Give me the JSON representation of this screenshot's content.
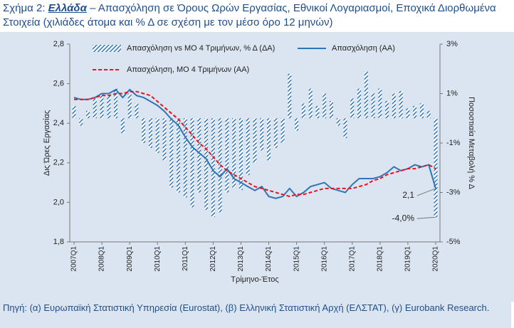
{
  "header": {
    "title_prefix": "Σχήμα 2: ",
    "title_country": "Ελλάδα",
    "title_rest": " – Απασχόληση σε Όρους Ωρών Εργασίας, Εθνικοί Λογαριασμοί, Εποχικά Διορθωμένα Στοιχεία (χιλιάδες άτομα και % Δ σε σχέση με τον μέσο όρο 12 μηνών)"
  },
  "chart_data": {
    "type": "line",
    "xlabel": "Τρίμηνο-Έτος",
    "ylabel": "Δις Ώρες Εργασίας",
    "y2label": "Ποσοστιαία Μεταβολή % Δ",
    "categories": [
      "2007Q1",
      null,
      null,
      null,
      "2008Q1",
      null,
      null,
      null,
      "2009Q1",
      null,
      null,
      null,
      "2010Q1",
      null,
      null,
      null,
      "2011Q1",
      null,
      null,
      null,
      "2012Q1",
      null,
      null,
      null,
      "2013Q1",
      null,
      null,
      null,
      "2014Q1",
      null,
      null,
      null,
      "2015Q1",
      null,
      null,
      null,
      "2016Q1",
      null,
      null,
      null,
      "2017Q1",
      null,
      null,
      null,
      "2018Q1",
      null,
      null,
      null,
      "2019Q1",
      null,
      null,
      null,
      "2020Q1"
    ],
    "ylim": [
      1.8,
      2.8
    ],
    "yticks": [
      {
        "value": 1.8,
        "label": "1,8"
      },
      {
        "value": 2.0,
        "label": "2,0"
      },
      {
        "value": 2.2,
        "label": "2,2"
      },
      {
        "value": 2.4,
        "label": "2,4"
      },
      {
        "value": 2.6,
        "label": "2,6"
      },
      {
        "value": 2.8,
        "label": "2,8"
      }
    ],
    "y2lim": [
      -5,
      3
    ],
    "y2ticks": [
      {
        "value": -5,
        "label": "-5%"
      },
      {
        "value": -3,
        "label": "-3%"
      },
      {
        "value": -1,
        "label": "-1%"
      },
      {
        "value": 1,
        "label": "1%"
      },
      {
        "value": 3,
        "label": "3%"
      }
    ],
    "series": [
      {
        "name": "Απασχόληση vs ΜΟ 4 Τριμήνων, % Δ (ΔΑ)",
        "type": "bar",
        "axis": "y2",
        "color": "#2e75b6",
        "hatch": true,
        "values": [
          0.5,
          -0.3,
          0.3,
          0.8,
          1.0,
          0.9,
          1.2,
          -0.6,
          1.0,
          0.6,
          -1.0,
          -1.2,
          -1.4,
          -1.7,
          -2.8,
          -3.0,
          -3.2,
          -3.6,
          -3.0,
          -3.7,
          -4.0,
          -3.8,
          -3.0,
          -2.8,
          -2.9,
          -2.3,
          -1.8,
          -1.3,
          -1.7,
          -1.2,
          -1.0,
          1.8,
          -0.5,
          0.6,
          1.2,
          0.5,
          1.0,
          0.7,
          -0.3,
          -0.8,
          0.8,
          1.2,
          1.9,
          1.0,
          1.2,
          0.7,
          1.0,
          1.1,
          0.4,
          0.5,
          0.6,
          0.3,
          -4.0
        ],
        "value_labels": [
          null,
          null,
          null,
          null,
          null,
          null,
          null,
          null,
          null,
          null,
          null,
          null,
          null,
          null,
          null,
          null,
          null,
          null,
          null,
          null,
          null,
          null,
          null,
          null,
          null,
          null,
          null,
          null,
          null,
          null,
          null,
          null,
          null,
          null,
          null,
          null,
          null,
          null,
          null,
          null,
          null,
          null,
          null,
          null,
          null,
          null,
          null,
          null,
          null,
          null,
          null,
          null,
          "-4,0%"
        ]
      },
      {
        "name": "Απασχόληση (ΑΑ)",
        "type": "line",
        "color": "#2e75b6",
        "dash": false,
        "values": [
          2.53,
          2.52,
          2.52,
          2.53,
          2.55,
          2.55,
          2.57,
          2.53,
          2.57,
          2.54,
          2.53,
          2.51,
          2.49,
          2.46,
          2.42,
          2.39,
          2.33,
          2.28,
          2.25,
          2.22,
          2.16,
          2.13,
          2.17,
          2.12,
          2.1,
          2.08,
          2.06,
          2.08,
          2.03,
          2.02,
          2.03,
          2.07,
          2.03,
          2.05,
          2.08,
          2.09,
          2.1,
          2.07,
          2.06,
          2.05,
          2.09,
          2.12,
          2.12,
          2.12,
          2.13,
          2.15,
          2.18,
          2.16,
          2.17,
          2.19,
          2.18,
          2.19,
          2.07
        ],
        "value_labels": [
          null,
          null,
          null,
          null,
          null,
          null,
          null,
          null,
          null,
          null,
          null,
          null,
          null,
          null,
          null,
          null,
          null,
          null,
          null,
          null,
          null,
          null,
          null,
          null,
          null,
          null,
          null,
          null,
          null,
          null,
          null,
          null,
          null,
          null,
          null,
          null,
          null,
          null,
          null,
          null,
          null,
          null,
          null,
          null,
          null,
          null,
          null,
          null,
          null,
          null,
          null,
          null,
          "2,1"
        ]
      },
      {
        "name": "Απασχόληση, ΜΟ 4 Τριμήνων (ΑΑ)",
        "type": "line",
        "color": "#e8141c",
        "dash": true,
        "values": [
          2.52,
          2.52,
          2.52,
          2.53,
          2.54,
          2.54,
          2.55,
          2.55,
          2.56,
          2.56,
          2.55,
          2.54,
          2.51,
          2.48,
          2.45,
          2.42,
          2.38,
          2.34,
          2.3,
          2.27,
          2.23,
          2.19,
          2.16,
          2.14,
          2.12,
          2.1,
          2.08,
          2.07,
          2.06,
          2.05,
          2.04,
          2.03,
          2.04,
          2.04,
          2.05,
          2.06,
          2.07,
          2.07,
          2.07,
          2.07,
          2.07,
          2.08,
          2.09,
          2.11,
          2.12,
          2.14,
          2.15,
          2.16,
          2.17,
          2.17,
          2.18,
          2.19,
          2.17
        ]
      }
    ]
  },
  "footer": {
    "source": "Πηγή: (α) Ευρωπαϊκή Στατιστική Υπηρεσία (Eurostat), (β) Ελληνική Στατιστική Αρχή (ΕΛΣΤΑΤ), (γ) Eurobank Research."
  }
}
